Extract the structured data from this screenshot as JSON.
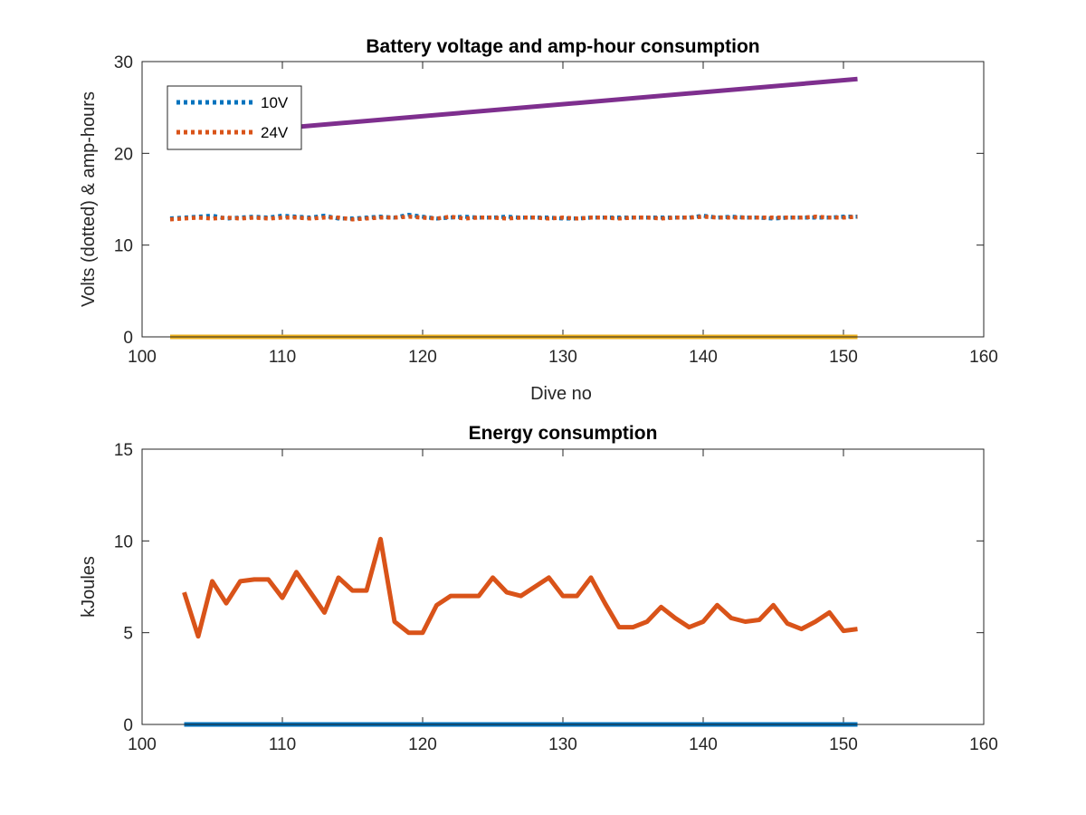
{
  "chart_data": [
    {
      "type": "line",
      "title": "Battery voltage and amp-hour consumption",
      "xlabel": "Dive no",
      "ylabel": "Volts (dotted) & amp-hours",
      "xlim": [
        100,
        160
      ],
      "ylim": [
        0,
        30
      ],
      "xticks": [
        100,
        110,
        120,
        130,
        140,
        150,
        160
      ],
      "yticks": [
        0,
        10,
        20,
        30
      ],
      "grid": false,
      "legend": {
        "placement": "top-left",
        "entries": [
          "10V",
          "24V"
        ]
      },
      "series": [
        {
          "name": "10V",
          "style": "dotted",
          "color": "#0072BD",
          "x": [
            102,
            103,
            104,
            105,
            106,
            107,
            108,
            109,
            110,
            111,
            112,
            113,
            114,
            115,
            116,
            117,
            118,
            119,
            120,
            121,
            122,
            123,
            124,
            125,
            126,
            127,
            128,
            129,
            130,
            131,
            132,
            133,
            134,
            135,
            136,
            137,
            138,
            139,
            140,
            141,
            142,
            143,
            144,
            145,
            146,
            147,
            148,
            149,
            150,
            151
          ],
          "values": [
            12.9,
            13.0,
            13.1,
            13.2,
            12.9,
            13.0,
            13.1,
            13.0,
            13.2,
            13.1,
            13.0,
            13.2,
            12.9,
            12.9,
            13.0,
            13.1,
            13.0,
            13.3,
            13.1,
            12.9,
            13.0,
            13.1,
            13.0,
            13.0,
            13.1,
            13.0,
            13.0,
            13.0,
            12.9,
            12.9,
            13.0,
            13.0,
            13.0,
            13.0,
            13.0,
            13.0,
            13.0,
            13.0,
            13.2,
            13.0,
            13.1,
            13.0,
            13.0,
            12.9,
            13.0,
            13.0,
            13.0,
            13.0,
            13.1,
            13.1
          ]
        },
        {
          "name": "24V",
          "style": "dotted",
          "color": "#D95319",
          "x": [
            102,
            103,
            104,
            105,
            106,
            107,
            108,
            109,
            110,
            111,
            112,
            113,
            114,
            115,
            116,
            117,
            118,
            119,
            120,
            121,
            122,
            123,
            124,
            125,
            126,
            127,
            128,
            129,
            130,
            131,
            132,
            133,
            134,
            135,
            136,
            137,
            138,
            139,
            140,
            141,
            142,
            143,
            144,
            145,
            146,
            147,
            148,
            149,
            150,
            151
          ],
          "values": [
            12.8,
            12.9,
            13.0,
            12.9,
            13.0,
            12.9,
            13.0,
            12.9,
            13.0,
            13.0,
            12.9,
            13.0,
            13.0,
            12.8,
            12.9,
            13.0,
            13.0,
            13.1,
            13.0,
            12.9,
            13.1,
            12.9,
            13.0,
            13.0,
            12.9,
            13.0,
            13.0,
            12.9,
            13.0,
            12.9,
            13.0,
            13.0,
            12.9,
            13.0,
            13.0,
            12.9,
            13.0,
            13.0,
            13.1,
            13.0,
            13.0,
            13.0,
            13.0,
            13.0,
            13.0,
            13.0,
            13.1,
            13.0,
            13.0,
            13.1
          ]
        },
        {
          "style": "solid",
          "color": "#EDB120",
          "x": [
            102,
            151
          ],
          "values": [
            0,
            0
          ]
        },
        {
          "style": "solid",
          "color": "#7E2F8E",
          "x": [
            102,
            151
          ],
          "values": [
            21.7,
            28.1
          ]
        }
      ]
    },
    {
      "type": "line",
      "title": "Energy consumption",
      "xlabel": "",
      "ylabel": "kJoules",
      "xlim": [
        100,
        160
      ],
      "ylim": [
        0,
        15
      ],
      "xticks": [
        100,
        110,
        120,
        130,
        140,
        150,
        160
      ],
      "yticks": [
        0,
        5,
        10,
        15
      ],
      "grid": false,
      "series": [
        {
          "style": "solid",
          "color": "#0072BD",
          "x": [
            103,
            151
          ],
          "values": [
            0,
            0
          ]
        },
        {
          "style": "solid",
          "color": "#D95319",
          "x": [
            103,
            104,
            105,
            106,
            107,
            108,
            109,
            110,
            111,
            112,
            113,
            114,
            115,
            116,
            117,
            118,
            119,
            120,
            121,
            122,
            123,
            124,
            125,
            126,
            127,
            128,
            129,
            130,
            131,
            132,
            133,
            134,
            135,
            136,
            137,
            138,
            139,
            140,
            141,
            142,
            143,
            144,
            145,
            146,
            147,
            148,
            149,
            150,
            151
          ],
          "values": [
            7.2,
            4.8,
            7.8,
            6.6,
            7.8,
            7.9,
            7.9,
            6.9,
            8.3,
            7.2,
            6.1,
            8.0,
            7.3,
            7.3,
            10.1,
            5.6,
            5.0,
            5.0,
            6.5,
            7.0,
            7.0,
            7.0,
            8.0,
            7.2,
            7.0,
            7.5,
            8.0,
            7.0,
            7.0,
            8.0,
            6.6,
            5.3,
            5.3,
            5.6,
            6.4,
            5.8,
            5.3,
            5.6,
            6.5,
            5.8,
            5.6,
            5.7,
            6.5,
            5.5,
            5.2,
            5.6,
            6.1,
            5.1,
            5.2
          ]
        }
      ]
    }
  ]
}
